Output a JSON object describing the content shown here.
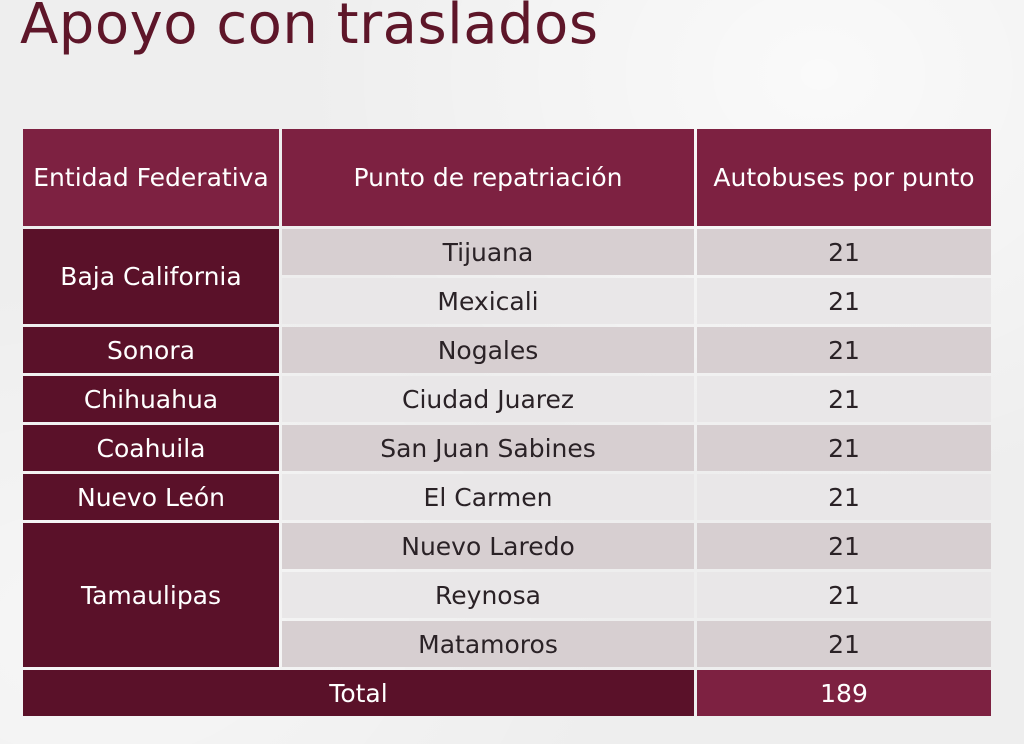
{
  "title": "Apoyo con traslados",
  "colors": {
    "title": "#5e1629",
    "header_bg": "#7d2141",
    "entity_bg": "#5a1129",
    "row_dark": "#d7cfd1",
    "row_light": "#e9e7e8"
  },
  "table": {
    "headers": [
      "Entidad Federativa",
      "Punto de repatriación",
      "Autobuses por punto"
    ],
    "entities": [
      "Baja California",
      "Sonora",
      "Chihuahua",
      "Coahuila",
      "Nuevo León",
      "Tamaulipas"
    ],
    "rows": [
      {
        "punto": "Tijuana",
        "autobuses": "21"
      },
      {
        "punto": "Mexicali",
        "autobuses": "21"
      },
      {
        "punto": "Nogales",
        "autobuses": "21"
      },
      {
        "punto": "Ciudad Juarez",
        "autobuses": "21"
      },
      {
        "punto": "San Juan Sabines",
        "autobuses": "21"
      },
      {
        "punto": "El Carmen",
        "autobuses": "21"
      },
      {
        "punto": "Nuevo Laredo",
        "autobuses": "21"
      },
      {
        "punto": "Reynosa",
        "autobuses": "21"
      },
      {
        "punto": "Matamoros",
        "autobuses": "21"
      }
    ],
    "total_label": "Total",
    "total_value": "189"
  }
}
